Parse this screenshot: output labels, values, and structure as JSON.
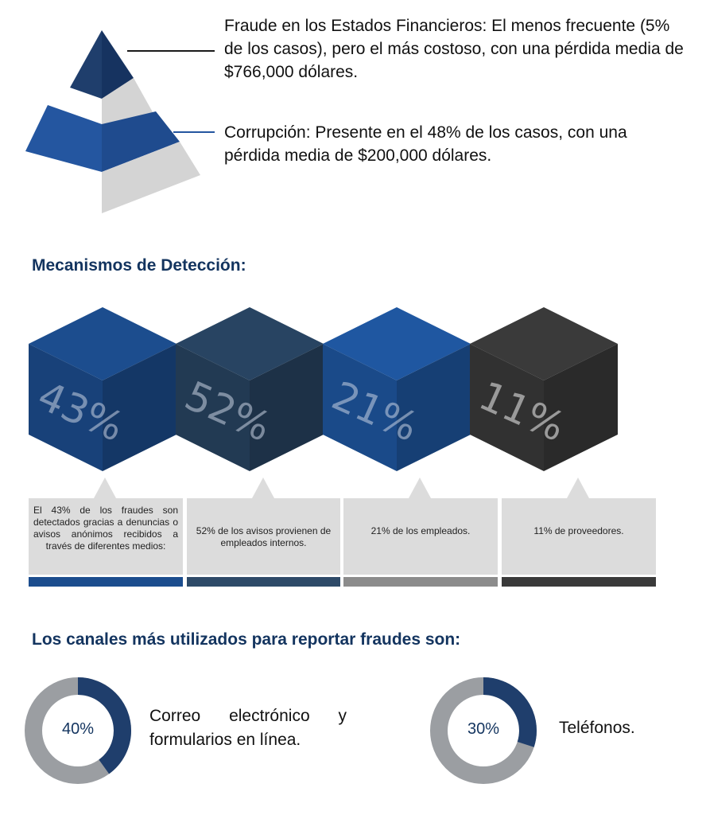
{
  "pyramid": {
    "fraude_estados": {
      "text": "Fraude en los Estados Financieros: El menos frecuente (5% de los casos), pero el más costoso, con una pérdida media de $766,000 dólares."
    },
    "corrupcion": {
      "text": "Corrupción: Presente en el 48% de los casos, con una pérdida media de $200,000 dólares."
    },
    "colors": {
      "dark_navy": "#1f3e6c",
      "blue": "#2456a0",
      "gray": "#d4d4d4",
      "leader_line": "#1a1a1a"
    }
  },
  "detection": {
    "title": "Mecanismos de Detección:",
    "cubes": [
      {
        "value": "43%",
        "color": "#1c4d8e",
        "caption": "El 43% de los fraudes son detectados gracias a denuncias o avisos anónimos recibidos a través de diferentes medios:"
      },
      {
        "value": "52%",
        "color": "#284462",
        "caption": "52% de los avisos provienen de empleados internos."
      },
      {
        "value": "21%",
        "color": "#1f57a1",
        "caption": "21% de los empleados."
      },
      {
        "value": "11%",
        "color": "#3a3a3a",
        "caption": "11% de proveedores."
      }
    ]
  },
  "channels": {
    "title": "Los canales más utilizados para reportar fraudes son:",
    "items": [
      {
        "percent_label": "40%",
        "percent": 0.4,
        "text": "Correo electrónico y formularios en línea."
      },
      {
        "percent_label": "30%",
        "percent": 0.3,
        "text": "Teléfonos."
      }
    ],
    "colors": {
      "fill": "#1f3e6c",
      "track": "#9b9ea2"
    }
  }
}
